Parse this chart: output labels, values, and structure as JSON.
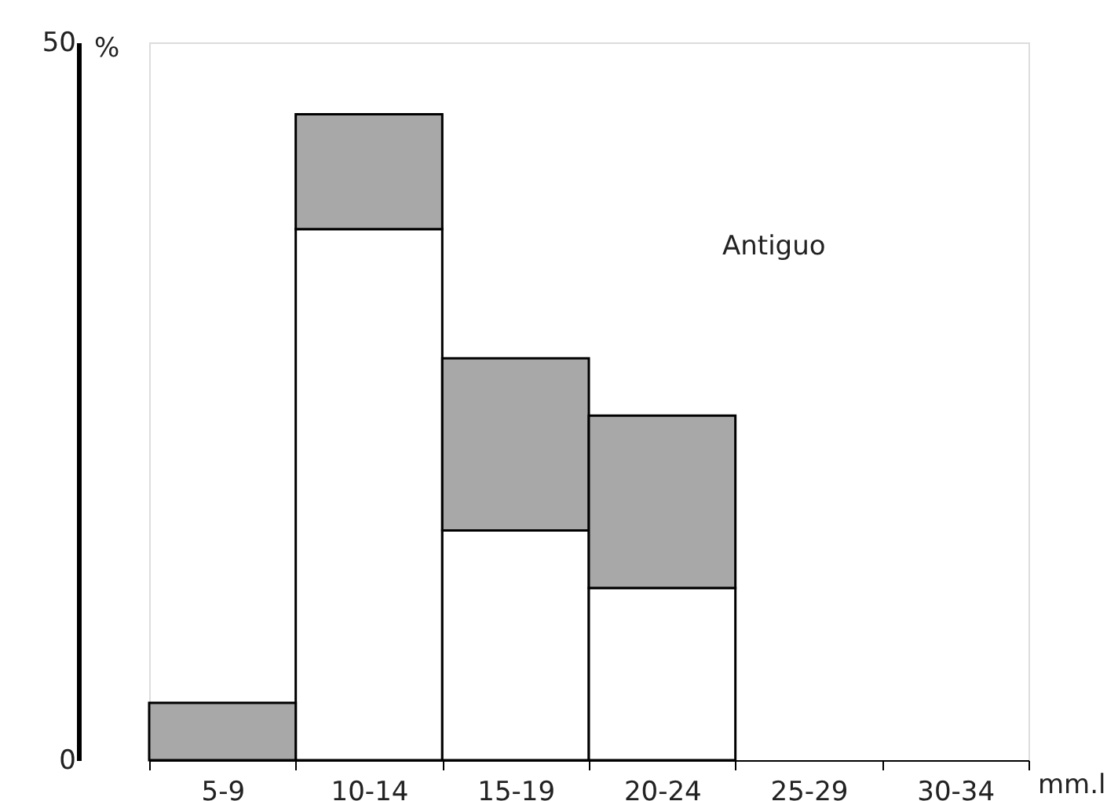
{
  "chart_data": {
    "type": "bar",
    "stacked": true,
    "ylabel": "%",
    "xlabel": "mm.l",
    "annotations": [
      "Antiguo"
    ],
    "categories": [
      "5-9",
      "10-14",
      "15-19",
      "20-24",
      "25-29",
      "30-34"
    ],
    "series": [
      {
        "color": "#ffffff",
        "values": [
          0,
          37,
          16,
          12,
          null,
          null
        ]
      },
      {
        "color": "#a8a8a8",
        "values": [
          4,
          8,
          12,
          12,
          null,
          null
        ]
      }
    ],
    "ylim": [
      0,
      50
    ],
    "yticks": [
      0,
      50
    ],
    "grid": false,
    "legend": false
  }
}
